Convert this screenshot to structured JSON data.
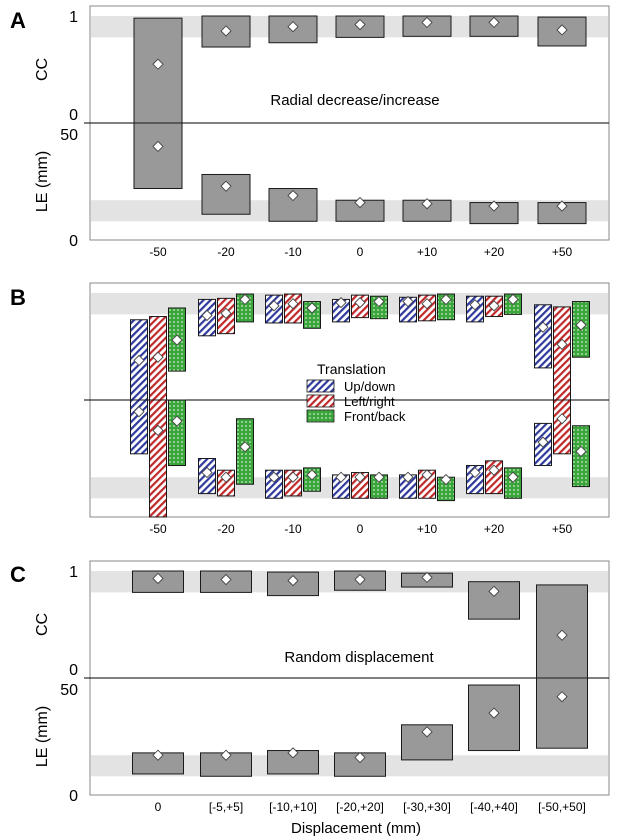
{
  "figure": {
    "xlabel": "Displacement (mm)"
  },
  "colors": {
    "box": "#999999",
    "box_stroke": "#1a1a1a",
    "band": "#e3e3e3",
    "updown": "#2e3a9c",
    "leftright": "#c0282a",
    "frontback": "#3aa53a"
  },
  "chart_data": [
    {
      "panel_letter": "A",
      "type": "box",
      "annotation": "Radial decrease/increase",
      "categories": [
        "-50",
        "-20",
        "-10",
        "0",
        "+10",
        "+20",
        "+50"
      ],
      "cc": {
        "ylabel": "CC",
        "ylim": [
          0,
          1
        ],
        "ticks": [
          "0",
          "1"
        ],
        "reference_band": [
          0.8,
          1.0
        ],
        "low": [
          0.0,
          0.71,
          0.75,
          0.8,
          0.81,
          0.81,
          0.72
        ],
        "high": [
          0.98,
          1.0,
          1.0,
          1.0,
          1.0,
          1.0,
          0.99
        ],
        "median": [
          0.55,
          0.86,
          0.9,
          0.92,
          0.94,
          0.94,
          0.87
        ]
      },
      "le": {
        "ylabel": "LE (mm)",
        "ylim": [
          0,
          50
        ],
        "ticks": [
          "0",
          "50"
        ],
        "reference_band": [
          8,
          17
        ],
        "low": [
          22,
          11,
          8,
          8,
          8,
          7,
          7
        ],
        "high": [
          50,
          28,
          22,
          17,
          17,
          16,
          16
        ],
        "median": [
          40,
          23,
          19,
          16,
          15.5,
          14.5,
          14.5
        ]
      }
    },
    {
      "panel_letter": "B",
      "type": "box",
      "categories": [
        "-50",
        "-20",
        "-10",
        "0",
        "+10",
        "+20",
        "+50"
      ],
      "legend": {
        "title": "Translation",
        "position": "center"
      },
      "series": [
        {
          "name": "Up/down",
          "pattern": "diagonal-stripes",
          "color_key": "updown",
          "cc": {
            "low": [
              0.0,
              0.6,
              0.72,
              0.73,
              0.73,
              0.73,
              0.3
            ],
            "high": [
              0.75,
              0.94,
              0.98,
              0.94,
              0.96,
              0.97,
              0.89
            ],
            "median": [
              0.37,
              0.79,
              0.88,
              0.91,
              0.92,
              0.89,
              0.68
            ]
          },
          "le": {
            "low": [
              27,
              10,
              8,
              8,
              8,
              10,
              22
            ],
            "high": [
              50,
              25,
              20,
              18,
              18,
              22,
              40
            ],
            "median": [
              45,
              19,
              17,
              17,
              17,
              19,
              32
            ]
          }
        },
        {
          "name": "Left/right",
          "pattern": "diagonal-stripes",
          "color_key": "leftright",
          "cc": {
            "low": [
              0.0,
              0.62,
              0.72,
              0.77,
              0.74,
              0.78,
              0.0
            ],
            "high": [
              0.78,
              0.95,
              0.99,
              0.98,
              0.98,
              0.97,
              0.87
            ],
            "median": [
              0.4,
              0.81,
              0.9,
              0.91,
              0.9,
              0.88,
              0.52
            ]
          },
          "le": {
            "low": [
              0,
              9,
              9,
              8,
              8,
              10,
              27
            ],
            "high": [
              50,
              20,
              20,
              19,
              20,
              24,
              50
            ],
            "median": [
              37,
              17,
              17,
              17,
              18,
              20,
              42
            ]
          }
        },
        {
          "name": "Front/back",
          "pattern": "dots",
          "color_key": "frontback",
          "cc": {
            "low": [
              0.27,
              0.73,
              0.67,
              0.76,
              0.75,
              0.8,
              0.4
            ],
            "high": [
              0.86,
              0.99,
              0.92,
              0.97,
              0.99,
              0.99,
              0.92
            ],
            "median": [
              0.56,
              0.94,
              0.86,
              0.92,
              0.94,
              0.94,
              0.7
            ]
          },
          "le": {
            "low": [
              22,
              14,
              11,
              8,
              7,
              8,
              13
            ],
            "high": [
              50,
              42,
              21,
              18,
              17,
              21,
              39
            ],
            "median": [
              41,
              30,
              18,
              17,
              16,
              17,
              28
            ]
          }
        }
      ]
    },
    {
      "panel_letter": "C",
      "type": "box",
      "annotation": "Random displacement",
      "categories": [
        "0",
        "[-5,+5]",
        "[-10,+10]",
        "[-20,+20]",
        "[-30,+30]",
        "[-40,+40]",
        "[-50,+50]"
      ],
      "cc": {
        "ylabel": "CC",
        "ylim": [
          0,
          1
        ],
        "ticks": [
          "0",
          "1"
        ],
        "low": [
          0.8,
          0.8,
          0.77,
          0.82,
          0.85,
          0.55,
          0.0
        ],
        "high": [
          1.0,
          1.0,
          0.99,
          1.0,
          0.98,
          0.9,
          0.87
        ],
        "median": [
          0.93,
          0.92,
          0.91,
          0.92,
          0.94,
          0.81,
          0.4
        ]
      },
      "le": {
        "ylabel": "LE (mm)",
        "ylim": [
          0,
          50
        ],
        "ticks": [
          "0",
          "50"
        ],
        "low": [
          9,
          8,
          9,
          8,
          15,
          19,
          20
        ],
        "high": [
          18,
          18,
          19,
          18,
          30,
          47,
          50
        ],
        "median": [
          17,
          17,
          18,
          16,
          27,
          35,
          42
        ]
      }
    }
  ]
}
